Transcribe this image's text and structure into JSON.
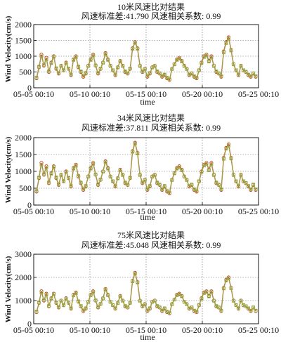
{
  "chart_data": [
    {
      "type": "line",
      "title": "10米风速比对结果",
      "subtitle": "风速标准差:41.790   风速相关系数: 0.99",
      "xlabel": "time",
      "ylabel": "Wind Velocity(cm/s)",
      "ylim": [
        0,
        2000
      ],
      "yticks": [
        0,
        500,
        1000,
        1500,
        2000
      ],
      "xticks": [
        "05-05 00:10",
        "05-10 00:10",
        "05-15 00:10",
        "05-20 00:10",
        "05-25 00:10"
      ],
      "grid": "dotted",
      "series": [
        {
          "marker": "circle",
          "color": "#d62a1e",
          "values": [
            300,
            650,
            1050,
            700,
            950,
            500,
            800,
            1000,
            600,
            450,
            700,
            550,
            800,
            600,
            400,
            900,
            1000,
            650,
            500,
            350,
            450,
            700,
            900,
            1050,
            700,
            450,
            600,
            800,
            1100,
            900,
            700,
            550,
            400,
            650,
            850,
            700,
            500,
            450,
            600,
            1250,
            1450,
            1250,
            700,
            500,
            600,
            350,
            450,
            650,
            700,
            500,
            450,
            350,
            400,
            300,
            250,
            600,
            750,
            900,
            950,
            850,
            700,
            600,
            400,
            450,
            350,
            300,
            550,
            800,
            1000,
            1050,
            850,
            1000,
            700,
            500,
            450,
            350,
            1150,
            1450,
            1600,
            1200,
            750,
            550,
            400,
            700,
            550,
            500,
            400,
            350,
            450,
            350
          ]
        },
        {
          "marker": "square",
          "color": "#8db645",
          "values": [
            320,
            670,
            1000,
            720,
            900,
            520,
            780,
            980,
            620,
            470,
            690,
            560,
            780,
            610,
            420,
            880,
            970,
            670,
            520,
            380,
            470,
            690,
            880,
            1020,
            710,
            470,
            610,
            790,
            1070,
            880,
            690,
            560,
            420,
            640,
            830,
            690,
            520,
            460,
            610,
            1230,
            1420,
            1230,
            690,
            520,
            590,
            370,
            470,
            640,
            690,
            520,
            460,
            370,
            420,
            320,
            270,
            590,
            740,
            880,
            920,
            830,
            690,
            590,
            420,
            460,
            370,
            320,
            560,
            780,
            970,
            1020,
            830,
            960,
            690,
            520,
            460,
            370,
            1120,
            1410,
            1560,
            1180,
            740,
            560,
            420,
            690,
            560,
            510,
            420,
            370,
            460,
            370
          ]
        }
      ]
    },
    {
      "type": "line",
      "title": "34米风速比对结果",
      "subtitle": "风速标准差:37.811   风速相关系数: 0.99",
      "xlabel": "time",
      "ylabel": "Wind Velocity(cm/s)",
      "ylim": [
        0,
        2000
      ],
      "yticks": [
        0,
        500,
        1000,
        1500,
        2000
      ],
      "xticks": [
        "05-05 00:10",
        "05-10 00:10",
        "05-15 00:10",
        "05-20 00:10",
        "05-25 00:10"
      ],
      "grid": "dotted",
      "series": [
        {
          "marker": "circle",
          "color": "#d62a1e",
          "values": [
            400,
            800,
            1250,
            900,
            1150,
            650,
            950,
            1150,
            800,
            600,
            900,
            700,
            1000,
            800,
            550,
            1100,
            1200,
            850,
            650,
            450,
            550,
            850,
            1100,
            1250,
            900,
            600,
            750,
            1000,
            1300,
            1100,
            850,
            700,
            550,
            800,
            1050,
            900,
            650,
            600,
            800,
            1600,
            1850,
            1550,
            900,
            650,
            750,
            450,
            550,
            850,
            900,
            650,
            600,
            450,
            550,
            400,
            350,
            750,
            950,
            1100,
            1150,
            1050,
            850,
            750,
            550,
            600,
            450,
            400,
            700,
            1000,
            1200,
            1250,
            1050,
            1250,
            900,
            650,
            600,
            450,
            1400,
            1700,
            1800,
            1400,
            900,
            700,
            550,
            900,
            700,
            650,
            550,
            450,
            600,
            450
          ]
        },
        {
          "marker": "square",
          "color": "#8db645",
          "values": [
            420,
            820,
            1200,
            920,
            1110,
            670,
            930,
            1130,
            820,
            620,
            890,
            710,
            980,
            810,
            570,
            1080,
            1170,
            870,
            670,
            480,
            570,
            840,
            1080,
            1220,
            910,
            620,
            760,
            990,
            1270,
            1080,
            840,
            710,
            570,
            790,
            1030,
            890,
            670,
            610,
            810,
            1580,
            1820,
            1530,
            890,
            670,
            740,
            470,
            570,
            840,
            890,
            670,
            610,
            470,
            570,
            420,
            370,
            740,
            940,
            1080,
            1120,
            1030,
            840,
            740,
            570,
            610,
            470,
            420,
            710,
            980,
            1170,
            1220,
            1030,
            1210,
            890,
            670,
            610,
            470,
            1370,
            1670,
            1760,
            1380,
            890,
            710,
            570,
            890,
            710,
            660,
            570,
            470,
            610,
            470
          ]
        }
      ]
    },
    {
      "type": "line",
      "title": "75米风速比对结果",
      "subtitle": "风速标准差:45.048   风速相关系数: 0.99",
      "xlabel": "time",
      "ylabel": "Wind Velocity(cm/s)",
      "ylim": [
        0,
        3000
      ],
      "yticks": [
        0,
        1000,
        2000,
        3000
      ],
      "xticks": [
        "05-05 00:10",
        "05-10 00:10",
        "05-15 00:10",
        "05-20 00:10",
        "05-25 00:10"
      ],
      "grid": "dotted",
      "series": [
        {
          "marker": "circle",
          "color": "#d62a1e",
          "values": [
            500,
            900,
            1400,
            1000,
            1300,
            750,
            1100,
            1300,
            900,
            700,
            1000,
            800,
            1100,
            900,
            650,
            1250,
            1350,
            950,
            750,
            550,
            650,
            950,
            1250,
            1400,
            1000,
            700,
            850,
            1100,
            1500,
            1250,
            950,
            800,
            650,
            900,
            1200,
            1000,
            750,
            700,
            900,
            1850,
            2200,
            1800,
            1000,
            750,
            850,
            550,
            650,
            950,
            1000,
            750,
            700,
            550,
            650,
            500,
            450,
            850,
            1050,
            1250,
            1300,
            1200,
            950,
            850,
            650,
            700,
            550,
            500,
            800,
            1100,
            1350,
            1400,
            1200,
            1400,
            1000,
            750,
            700,
            550,
            1550,
            1900,
            2000,
            1550,
            1000,
            800,
            650,
            1000,
            800,
            750,
            650,
            550,
            700,
            550
          ]
        },
        {
          "marker": "square",
          "color": "#8db645",
          "values": [
            520,
            920,
            1350,
            1020,
            1260,
            770,
            1080,
            1280,
            920,
            720,
            990,
            810,
            1080,
            910,
            670,
            1230,
            1320,
            970,
            770,
            580,
            670,
            940,
            1230,
            1370,
            1010,
            720,
            860,
            1090,
            1470,
            1230,
            940,
            810,
            670,
            890,
            1180,
            990,
            770,
            710,
            910,
            1830,
            2160,
            1780,
            990,
            770,
            840,
            570,
            670,
            940,
            990,
            770,
            710,
            570,
            670,
            520,
            470,
            840,
            1040,
            1230,
            1270,
            1180,
            940,
            840,
            670,
            710,
            570,
            520,
            810,
            1080,
            1320,
            1370,
            1180,
            1360,
            990,
            770,
            710,
            570,
            1520,
            1870,
            1960,
            1530,
            990,
            810,
            670,
            990,
            810,
            760,
            670,
            570,
            710,
            570
          ]
        }
      ]
    }
  ]
}
